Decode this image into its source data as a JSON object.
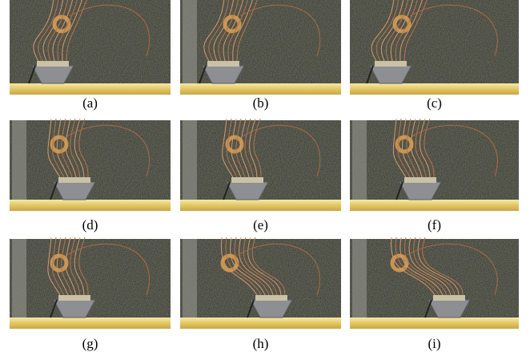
{
  "panels": [
    {
      "caption": "(a)"
    },
    {
      "caption": "(b)"
    },
    {
      "caption": "(c)"
    },
    {
      "caption": "(d)"
    },
    {
      "caption": "(e)"
    },
    {
      "caption": "(f)"
    },
    {
      "caption": "(g)"
    },
    {
      "caption": "(h)"
    },
    {
      "caption": "(i)"
    }
  ]
}
